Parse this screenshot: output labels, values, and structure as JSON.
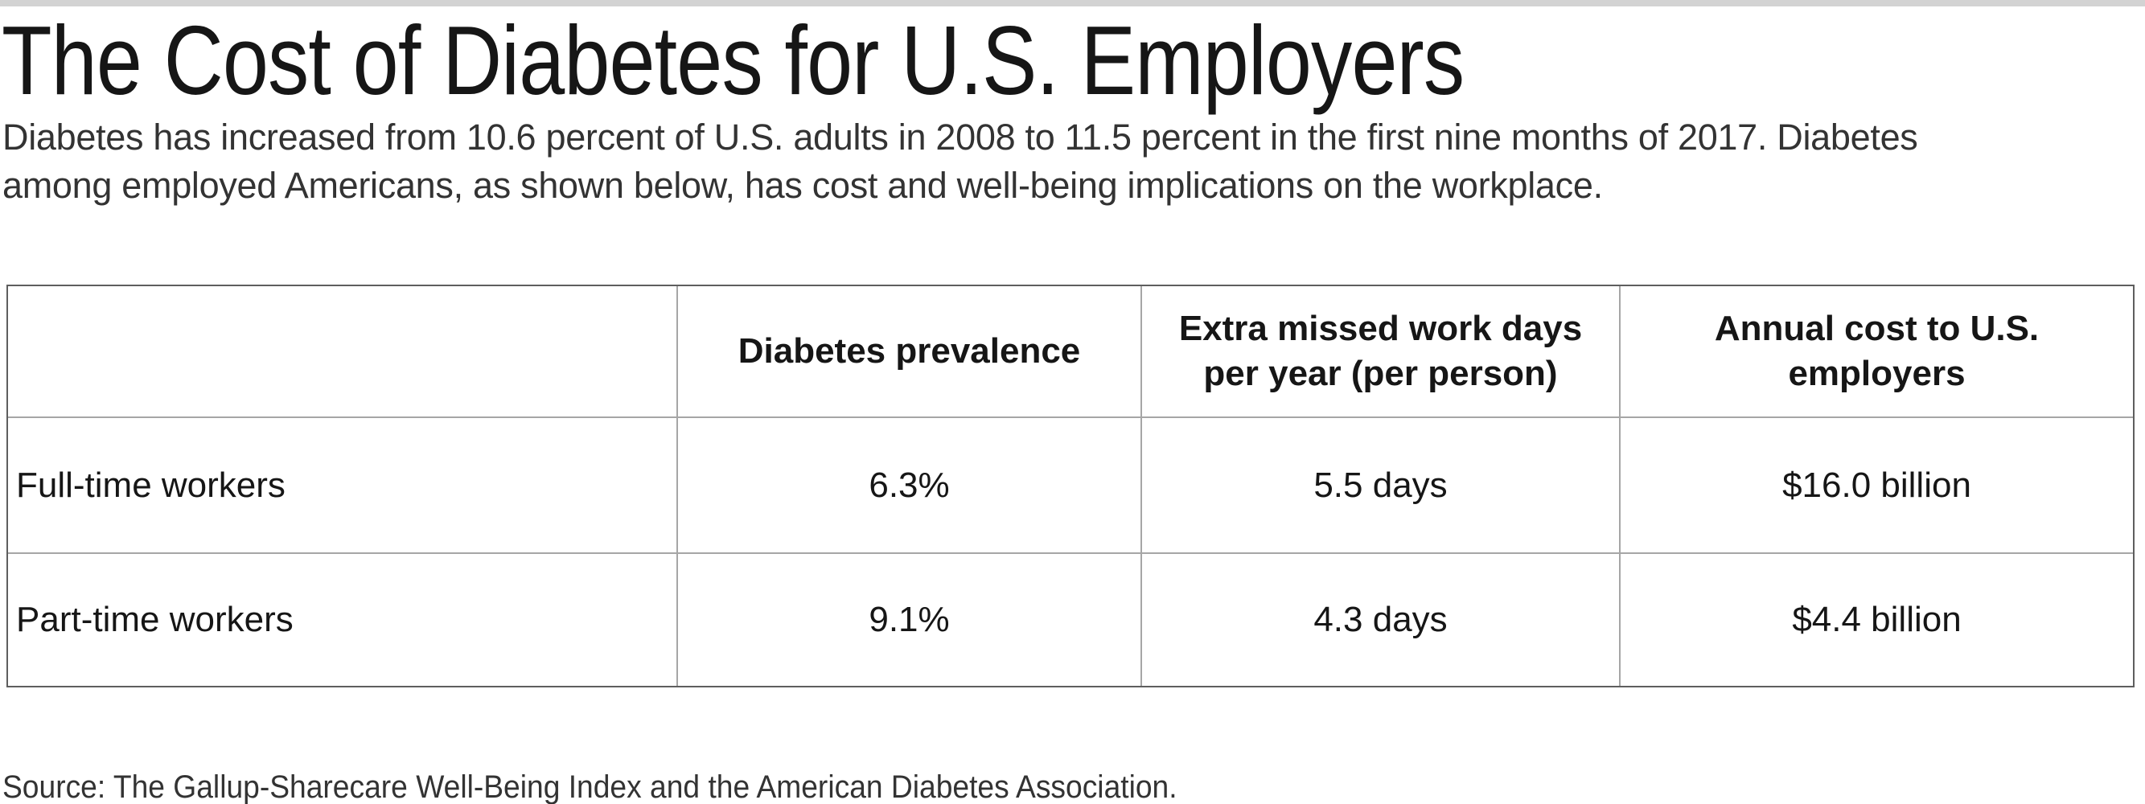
{
  "page": {
    "title": "The Cost of Diabetes for U.S. Employers",
    "subtitle": {
      "lines": [
        "Diabetes has increased from 10.6 percent of U.S. adults in 2008 to 11.5 percent in the first nine months of 2017. Diabetes",
        "among employed Americans, as shown below, has cost and well-being implications on the workplace."
      ]
    },
    "source": "Source: The Gallup-Sharecare Well-Being Index and the American Diabetes Association."
  },
  "table": {
    "headers": [
      "",
      "Diabetes prevalence",
      "Extra missed work days per year (per person)",
      "Annual cost to U.S. employers"
    ],
    "rows": [
      {
        "cells": [
          "Full-time workers",
          "6.3%",
          "5.5 days",
          "$16.0 billion"
        ]
      },
      {
        "cells": [
          "Part-time workers",
          "9.1%",
          "4.3 days",
          "$4.4 billion"
        ]
      }
    ]
  },
  "colors": {
    "bg": "#ffffff",
    "text": "#161616",
    "body-text": "#333333",
    "bar": "#d3d3d3",
    "border-outer": "#5e5e5e",
    "border-inner": "#a6a6a6"
  },
  "chart_data": {
    "type": "table",
    "title": "The Cost of Diabetes for U.S. Employers",
    "subtitle": "Diabetes has increased from 10.6 percent of U.S. adults in 2008 to 11.5 percent in the first nine months of 2017. Diabetes among employed Americans, as shown below, has cost and well-being implications on the workplace.",
    "columns": [
      "",
      "Diabetes prevalence",
      "Extra missed work days per year (per person)",
      "Annual cost to U.S. employers"
    ],
    "rows": [
      [
        "Full-time workers",
        "6.3%",
        "5.5 days",
        "$16.0 billion"
      ],
      [
        "Part-time workers",
        "9.1%",
        "4.3 days",
        "$4.4 billion"
      ]
    ],
    "values": {
      "full_time": {
        "diabetes_prevalence_pct": 6.3,
        "extra_missed_work_days_per_year": 5.5,
        "annual_cost_billion_usd": 16.0
      },
      "part_time": {
        "diabetes_prevalence_pct": 9.1,
        "extra_missed_work_days_per_year": 4.3,
        "annual_cost_billion_usd": 4.4
      }
    },
    "source": "Source: The Gallup-Sharecare Well-Being Index and the American Diabetes Association.",
    "legend_position": "none",
    "grid": true
  }
}
